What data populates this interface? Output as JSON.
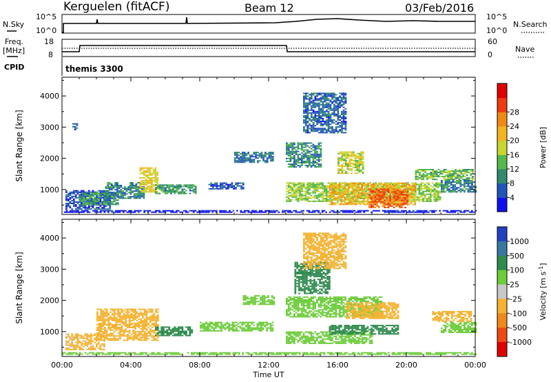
{
  "header": {
    "station": "Kerguelen (fitACF)",
    "beam": "Beam 12",
    "date": "03/Feb/2016"
  },
  "strip_panels": {
    "nsky_label": "N.Sky",
    "nsky_ticks": [
      "10^5",
      "10^0"
    ],
    "nsearch_label": "N.Search",
    "nsearch_ticks": [
      "10^5",
      "10^0"
    ],
    "freq_label": "Freq.",
    "freq_unit": "[MHz]",
    "freq_ticks": [
      "18",
      "8"
    ],
    "nave_label": "Nave",
    "nave_ticks": [
      "60",
      "0"
    ],
    "cpid_label": "CPID",
    "cpid_value": "themis 3300"
  },
  "chart_data": [
    {
      "type": "heatmap",
      "name": "power",
      "ylabel": "Slant Range [km]",
      "ylim": [
        200,
        4600
      ],
      "yticks": [
        "1000",
        "2000",
        "3000",
        "4000"
      ],
      "xlim": [
        "00:00",
        "24:00"
      ],
      "colorbar_label": "Power [dB]",
      "colorbar_ticks": [
        "4",
        "8",
        "12",
        "16",
        "20",
        "24",
        "28"
      ],
      "colorbar_colors": [
        "#1010ee",
        "#2255bb",
        "#2f8a6e",
        "#55b84a",
        "#c8d630",
        "#f2b51f",
        "#f08a14",
        "#ee3a0e",
        "#e00000"
      ],
      "regions": [
        {
          "t0": 0.0,
          "t1": 24.0,
          "r0": 250,
          "r1": 330,
          "v": 2
        },
        {
          "t0": 0.2,
          "t1": 2.8,
          "r0": 350,
          "r1": 950,
          "v": 5
        },
        {
          "t0": 1.0,
          "t1": 3.2,
          "r0": 500,
          "r1": 900,
          "v": 12
        },
        {
          "t0": 2.5,
          "t1": 4.8,
          "r0": 700,
          "r1": 1200,
          "v": 9
        },
        {
          "t0": 4.5,
          "t1": 5.6,
          "r0": 900,
          "r1": 1700,
          "v": 20
        },
        {
          "t0": 5.4,
          "t1": 7.8,
          "r0": 850,
          "r1": 1150,
          "v": 11
        },
        {
          "t0": 10.0,
          "t1": 12.2,
          "r0": 1850,
          "r1": 2200,
          "v": 8
        },
        {
          "t0": 8.5,
          "t1": 10.5,
          "r0": 1000,
          "r1": 1200,
          "v": 6
        },
        {
          "t0": 13.0,
          "t1": 15.0,
          "r0": 1700,
          "r1": 2500,
          "v": 10
        },
        {
          "t0": 13.0,
          "t1": 22.0,
          "r0": 600,
          "r1": 1200,
          "v": 16
        },
        {
          "t0": 15.5,
          "t1": 20.5,
          "r0": 500,
          "r1": 1200,
          "v": 22
        },
        {
          "t0": 17.8,
          "t1": 20.0,
          "r0": 400,
          "r1": 1000,
          "v": 28
        },
        {
          "t0": 14.0,
          "t1": 16.5,
          "r0": 2800,
          "r1": 4100,
          "v": 7
        },
        {
          "t0": 16.0,
          "t1": 17.5,
          "r0": 1500,
          "r1": 2200,
          "v": 18
        },
        {
          "t0": 20.5,
          "t1": 23.8,
          "r0": 1300,
          "r1": 1650,
          "v": 14
        },
        {
          "t0": 22.0,
          "t1": 24.0,
          "r0": 900,
          "r1": 1300,
          "v": 9
        },
        {
          "t0": 0.6,
          "t1": 0.9,
          "r0": 2900,
          "r1": 3100,
          "v": 6
        }
      ]
    },
    {
      "type": "heatmap",
      "name": "velocity",
      "ylabel": "Slant Range [km]",
      "ylim": [
        200,
        4600
      ],
      "yticks": [
        "1000",
        "2000",
        "3000",
        "4000"
      ],
      "xlim": [
        "00:00",
        "24:00"
      ],
      "xticks": [
        "00:00",
        "04:00",
        "08:00",
        "12:00",
        "16:00",
        "20:00",
        "00:00"
      ],
      "xlabel": "Time UT",
      "colorbar_label": "Velocity [m s",
      "colorbar_label_sup": "-1",
      "colorbar_label_end": "]",
      "colorbar_ticks": [
        "1000",
        "500",
        "100",
        "25",
        "-25",
        "-100",
        "-500",
        "-1000"
      ],
      "colorbar_colors": [
        "#2440c0",
        "#3a78a0",
        "#2f8a4e",
        "#6ccc3a",
        "#c8c8c8",
        "#f5b230",
        "#f2881a",
        "#ee4a10",
        "#e00000"
      ],
      "regions": [
        {
          "t0": 0.0,
          "t1": 24.0,
          "r0": 250,
          "r1": 330,
          "v": 0
        },
        {
          "t0": 0.2,
          "t1": 2.5,
          "r0": 400,
          "r1": 900,
          "v": -150
        },
        {
          "t0": 2.0,
          "t1": 5.6,
          "r0": 700,
          "r1": 1700,
          "v": -300
        },
        {
          "t0": 5.4,
          "t1": 7.5,
          "r0": 850,
          "r1": 1150,
          "v": 60
        },
        {
          "t0": 8.0,
          "t1": 12.2,
          "r0": 1000,
          "r1": 1300,
          "v": 5
        },
        {
          "t0": 10.5,
          "t1": 12.3,
          "r0": 1850,
          "r1": 2150,
          "v": 5
        },
        {
          "t0": 13.0,
          "t1": 18.5,
          "r0": 1450,
          "r1": 2100,
          "v": 5
        },
        {
          "t0": 13.0,
          "t1": 18.0,
          "r0": 600,
          "r1": 1000,
          "v": 5
        },
        {
          "t0": 15.5,
          "t1": 19.5,
          "r0": 900,
          "r1": 1200,
          "v": 60
        },
        {
          "t0": 13.5,
          "t1": 15.5,
          "r0": 2200,
          "r1": 3200,
          "v": 60
        },
        {
          "t0": 14.0,
          "t1": 16.5,
          "r0": 3000,
          "r1": 4150,
          "v": -200
        },
        {
          "t0": 16.5,
          "t1": 19.5,
          "r0": 1400,
          "r1": 1900,
          "v": -200
        },
        {
          "t0": 21.5,
          "t1": 23.8,
          "r0": 1300,
          "r1": 1650,
          "v": -200
        },
        {
          "t0": 22.0,
          "t1": 24.0,
          "r0": 950,
          "r1": 1300,
          "v": 5
        }
      ]
    }
  ]
}
